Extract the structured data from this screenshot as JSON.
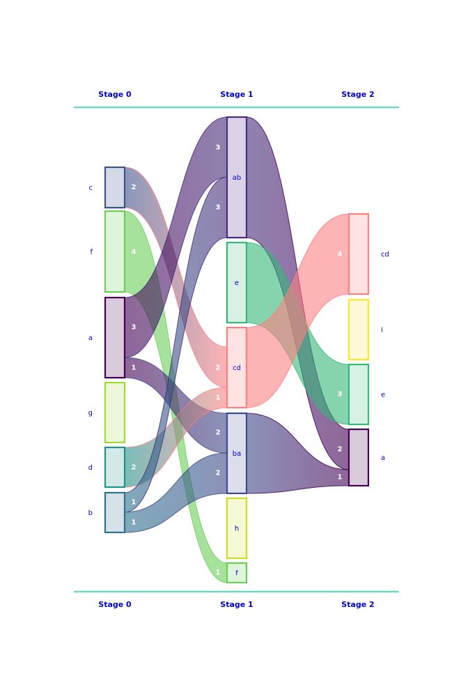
{
  "stages": [
    "Stage 0",
    "Stage 1",
    "Stage 2"
  ],
  "colors": {
    "rule": "#6fd9c4",
    "label": "#0000cc",
    "flow_label": "#ffffff"
  },
  "nodes": {
    "0": [
      {
        "id": "c",
        "label": "c",
        "stroke": "#3b528b",
        "fill": "#d5dae6"
      },
      {
        "id": "f",
        "label": "f",
        "stroke": "#6cce59",
        "fill": "#dff5db"
      },
      {
        "id": "a",
        "label": "a",
        "stroke": "#440154",
        "fill": "#d9cbdc"
      },
      {
        "id": "g",
        "label": "g",
        "stroke": "#a0da39",
        "fill": "#ecf8d9"
      },
      {
        "id": "d",
        "label": "d",
        "stroke": "#21918c",
        "fill": "#d3e9e8"
      },
      {
        "id": "b",
        "label": "b",
        "stroke": "#2c728e",
        "fill": "#d5e3e8"
      }
    ],
    "1": [
      {
        "id": "ab",
        "label": "ab",
        "stroke": "#472d7b",
        "fill": "#dbd3e5"
      },
      {
        "id": "e",
        "label": "e",
        "stroke": "#35b779",
        "fill": "#d8f1e5"
      },
      {
        "id": "cd",
        "label": "cd",
        "stroke": "#fc8181",
        "fill": "#ffe3e3"
      },
      {
        "id": "ba",
        "label": "ba",
        "stroke": "#3e4a89",
        "fill": "#dcdeeb"
      },
      {
        "id": "h",
        "label": "h",
        "stroke": "#c8e020",
        "fill": "#f5f9d6"
      },
      {
        "id": "f",
        "label": "f",
        "stroke": "#6cce59",
        "fill": "#dff5db"
      }
    ],
    "2": [
      {
        "id": "cd",
        "label": "cd",
        "stroke": "#fc8181",
        "fill": "#ffe3e3"
      },
      {
        "id": "i",
        "label": "i",
        "stroke": "#fde725",
        "fill": "#fff9d6"
      },
      {
        "id": "e",
        "label": "e",
        "stroke": "#35b779",
        "fill": "#d8f1e5"
      },
      {
        "id": "a",
        "label": "a",
        "stroke": "#440154",
        "fill": "#d9cbdc"
      }
    ]
  },
  "flows": [
    {
      "from": "c",
      "to": "cd",
      "value": 2,
      "src_label": "2",
      "dst_label": "2",
      "color_from": "#3b528b",
      "color_to": "#fc8181"
    },
    {
      "from": "f",
      "to": "f",
      "value": 4,
      "src_label": "4",
      "dst_label": "1",
      "color_from": "#6cce59",
      "color_to": "#6cce59"
    },
    {
      "from": "a",
      "to": "ab",
      "value": 3,
      "src_label": "3",
      "dst_label": "3",
      "color_from": "#440154",
      "color_to": "#472d7b"
    },
    {
      "from": "a",
      "to": "ba",
      "value": 1,
      "src_label": "1",
      "dst_label": "2",
      "color_from": "#440154",
      "color_to": "#3e4a89"
    },
    {
      "from": "d",
      "to": "cd",
      "value": 2,
      "src_label": "2",
      "dst_label": "1",
      "color_from": "#21918c",
      "color_to": "#fc8181"
    },
    {
      "from": "b",
      "to": "ab",
      "value": 1,
      "src_label": "1",
      "dst_label": "3",
      "color_from": "#2c728e",
      "color_to": "#472d7b"
    },
    {
      "from": "b",
      "to": "ba",
      "value": 1,
      "src_label": "1",
      "dst_label": "2",
      "color_from": "#2c728e",
      "color_to": "#3e4a89"
    },
    {
      "from": "ab",
      "to": "a",
      "value": 2,
      "color_from": "#472d7b",
      "color_to": "#440154"
    },
    {
      "from": "e",
      "to": "e",
      "value": 3,
      "dst_label": "3",
      "color_from": "#35b779",
      "color_to": "#35b779"
    },
    {
      "from": "cd",
      "to": "cd",
      "value": 4,
      "dst_label": "4",
      "color_from": "#fc8181",
      "color_to": "#fc8181"
    },
    {
      "from": "ba",
      "to": "a",
      "value": 1,
      "dst_label": "1",
      "color_from": "#3e4a89",
      "color_to": "#440154"
    }
  ]
}
